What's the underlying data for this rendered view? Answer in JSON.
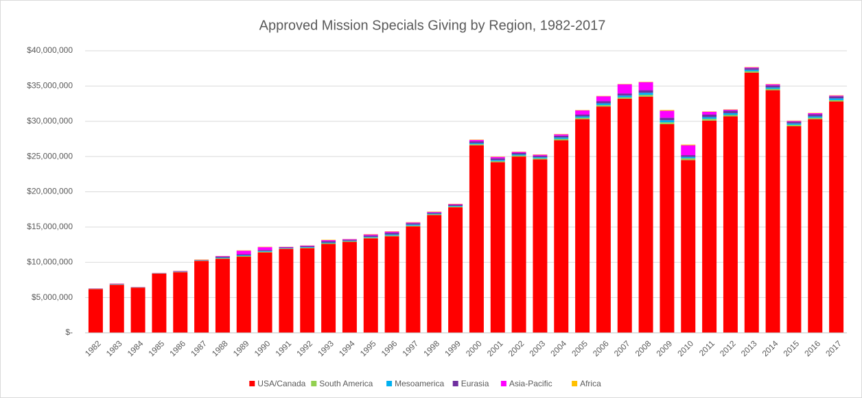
{
  "chart_data": {
    "type": "stacked_bar",
    "title": "Approved Mission Specials Giving by Region, 1982-2017",
    "categories": [
      "1982",
      "1983",
      "1984",
      "1985",
      "1986",
      "1987",
      "1988",
      "1989",
      "1990",
      "1991",
      "1992",
      "1993",
      "1994",
      "1995",
      "1996",
      "1997",
      "1998",
      "1999",
      "2000",
      "2001",
      "2002",
      "2003",
      "2004",
      "2005",
      "2006",
      "2007",
      "2008",
      "2009",
      "2010",
      "2011",
      "2012",
      "2013",
      "2014",
      "2015",
      "2016",
      "2017"
    ],
    "series": [
      {
        "name": "USA/Canada",
        "color": "#ff0000",
        "values": [
          6200000,
          6800000,
          6400000,
          8400000,
          8600000,
          10200000,
          10500000,
          10800000,
          11400000,
          11900000,
          12000000,
          12600000,
          12900000,
          13400000,
          13700000,
          15100000,
          16700000,
          17800000,
          26600000,
          24200000,
          25000000,
          24600000,
          27300000,
          30300000,
          32100000,
          33200000,
          33500000,
          29600000,
          24500000,
          30100000,
          30700000,
          36900000,
          34400000,
          29300000,
          30300000,
          32800000
        ]
      },
      {
        "name": "South America",
        "color": "#92d050",
        "values": [
          20000,
          40000,
          20000,
          20000,
          40000,
          40000,
          80000,
          100000,
          100000,
          50000,
          80000,
          100000,
          80000,
          100000,
          100000,
          100000,
          100000,
          100000,
          150000,
          150000,
          150000,
          150000,
          200000,
          200000,
          200000,
          200000,
          250000,
          250000,
          250000,
          250000,
          200000,
          200000,
          200000,
          200000,
          200000,
          200000
        ]
      },
      {
        "name": "Mesoamerica",
        "color": "#00b0f0",
        "values": [
          20000,
          40000,
          20000,
          20000,
          40000,
          40000,
          80000,
          100000,
          100000,
          50000,
          80000,
          100000,
          80000,
          100000,
          150000,
          150000,
          100000,
          100000,
          150000,
          150000,
          150000,
          150000,
          200000,
          200000,
          250000,
          250000,
          300000,
          300000,
          200000,
          250000,
          250000,
          200000,
          200000,
          200000,
          200000,
          250000
        ]
      },
      {
        "name": "Eurasia",
        "color": "#7030a0",
        "values": [
          30000,
          60000,
          30000,
          30000,
          60000,
          40000,
          140000,
          150000,
          150000,
          120000,
          140000,
          200000,
          140000,
          200000,
          250000,
          200000,
          150000,
          150000,
          250000,
          250000,
          200000,
          200000,
          250000,
          250000,
          300000,
          300000,
          350000,
          350000,
          250000,
          350000,
          350000,
          250000,
          300000,
          250000,
          300000,
          300000
        ]
      },
      {
        "name": "Asia-Pacific",
        "color": "#ff00ff",
        "values": [
          20000,
          40000,
          20000,
          20000,
          40000,
          30000,
          80000,
          500000,
          400000,
          60000,
          80000,
          150000,
          80000,
          150000,
          150000,
          100000,
          100000,
          100000,
          200000,
          200000,
          150000,
          150000,
          200000,
          600000,
          700000,
          1300000,
          1150000,
          1000000,
          1400000,
          400000,
          150000,
          100000,
          150000,
          100000,
          150000,
          100000
        ]
      },
      {
        "name": "Africa",
        "color": "#ffc000",
        "values": [
          10000,
          20000,
          10000,
          10000,
          20000,
          50000,
          20000,
          50000,
          50000,
          20000,
          20000,
          50000,
          20000,
          50000,
          50000,
          50000,
          50000,
          50000,
          50000,
          50000,
          50000,
          50000,
          50000,
          50000,
          50000,
          50000,
          50000,
          100000,
          100000,
          50000,
          50000,
          50000,
          50000,
          50000,
          50000,
          50000
        ]
      }
    ],
    "ylim": [
      0,
      40000000
    ],
    "yticks": [
      {
        "value": 0,
        "label": "$-"
      },
      {
        "value": 5000000,
        "label": "$5,000,000"
      },
      {
        "value": 10000000,
        "label": "$10,000,000"
      },
      {
        "value": 15000000,
        "label": "$15,000,000"
      },
      {
        "value": 20000000,
        "label": "$20,000,000"
      },
      {
        "value": 25000000,
        "label": "$25,000,000"
      },
      {
        "value": 30000000,
        "label": "$30,000,000"
      },
      {
        "value": 35000000,
        "label": "$35,000,000"
      },
      {
        "value": 40000000,
        "label": "$40,000,000"
      }
    ],
    "grid": true,
    "legend": "bottom"
  }
}
